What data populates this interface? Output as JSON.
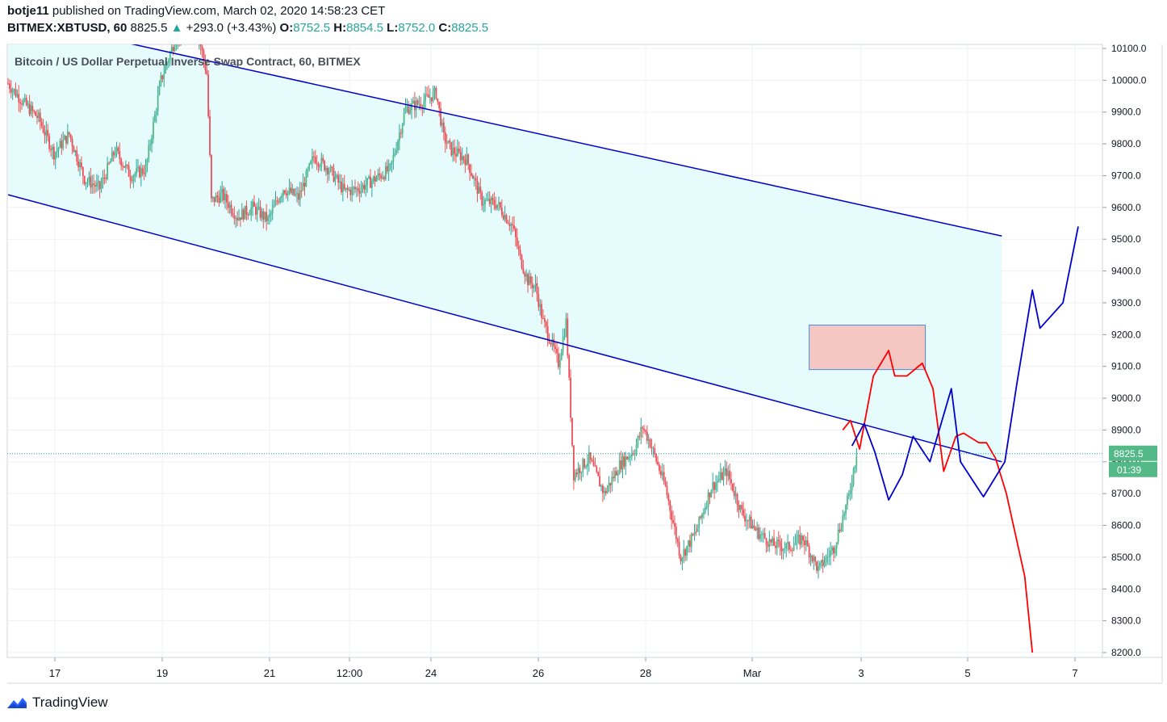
{
  "header": {
    "author": "botje11",
    "published_text": "published on TradingView.com, March 02, 2020 14:58:23 CET",
    "symbol_line": "BITMEX:XBTUSD, 60",
    "last": "8825.5",
    "change_arrow": "▲",
    "change": "+293.0 (+3.43%)",
    "o_label": "O:",
    "o_value": "8752.5",
    "h_label": "H:",
    "h_value": "8854.5",
    "l_label": "L:",
    "l_value": "8752.0",
    "c_label": "C:",
    "c_value": "8825.5"
  },
  "footer": {
    "brand": "TradingView"
  },
  "colors": {
    "up": "#26a69a",
    "up_body": "#53b987",
    "down": "#ef5350",
    "down_body": "#eb4d5c",
    "channel_line": "#0000cc",
    "channel_fill": "#e6fbfc",
    "box_fill": "#f4c7c3",
    "box_border": "#4a8fd9",
    "red_path": "#ff0000",
    "blue_path": "#0000cc",
    "price_tag": "#53b987"
  },
  "chart_data": {
    "type": "candlestick",
    "title": "Bitcoin / US Dollar Perpetual Inverse Swap Contract, 60, BITMEX",
    "y_axis": {
      "ticks": [
        "10100.0",
        "10000.0",
        "9900.0",
        "9800.0",
        "9700.0",
        "9600.0",
        "9500.0",
        "9400.0",
        "9300.0",
        "9200.0",
        "9100.0",
        "9000.0",
        "8900.0",
        "8800.0",
        "8700.0",
        "8600.0",
        "8500.0",
        "8400.0",
        "8300.0",
        "8200.0"
      ],
      "ylim": [
        8180,
        10110
      ]
    },
    "x_axis": {
      "ticks": [
        "17",
        "19",
        "21",
        "12:00",
        "24",
        "26",
        "28",
        "Mar",
        "3",
        "5",
        "7"
      ]
    },
    "last_price": "8825.5",
    "countdown": "01:39",
    "price_path": [
      [
        0,
        9990
      ],
      [
        10,
        9930
      ],
      [
        20,
        9880
      ],
      [
        30,
        9770
      ],
      [
        40,
        9830
      ],
      [
        50,
        9690
      ],
      [
        60,
        9660
      ],
      [
        70,
        9780
      ],
      [
        80,
        9700
      ],
      [
        90,
        9720
      ],
      [
        100,
        10000
      ],
      [
        110,
        10140
      ],
      [
        120,
        10160
      ],
      [
        125,
        10130
      ],
      [
        130,
        10020
      ],
      [
        133,
        9620
      ],
      [
        140,
        9640
      ],
      [
        150,
        9570
      ],
      [
        160,
        9600
      ],
      [
        170,
        9560
      ],
      [
        180,
        9660
      ],
      [
        190,
        9630
      ],
      [
        200,
        9760
      ],
      [
        210,
        9720
      ],
      [
        220,
        9650
      ],
      [
        230,
        9660
      ],
      [
        240,
        9690
      ],
      [
        250,
        9720
      ],
      [
        260,
        9910
      ],
      [
        270,
        9930
      ],
      [
        280,
        9960
      ],
      [
        285,
        9820
      ],
      [
        290,
        9780
      ],
      [
        300,
        9750
      ],
      [
        310,
        9620
      ],
      [
        320,
        9610
      ],
      [
        330,
        9540
      ],
      [
        335,
        9440
      ],
      [
        340,
        9370
      ],
      [
        345,
        9350
      ],
      [
        350,
        9240
      ],
      [
        355,
        9180
      ],
      [
        360,
        9110
      ],
      [
        365,
        9240
      ],
      [
        370,
        8760
      ],
      [
        380,
        8810
      ],
      [
        390,
        8700
      ],
      [
        400,
        8790
      ],
      [
        410,
        8840
      ],
      [
        415,
        8910
      ],
      [
        420,
        8860
      ],
      [
        430,
        8720
      ],
      [
        440,
        8500
      ],
      [
        450,
        8580
      ],
      [
        460,
        8720
      ],
      [
        470,
        8770
      ],
      [
        480,
        8640
      ],
      [
        490,
        8580
      ],
      [
        500,
        8540
      ],
      [
        510,
        8530
      ],
      [
        520,
        8560
      ],
      [
        530,
        8460
      ],
      [
        540,
        8530
      ],
      [
        550,
        8690
      ],
      [
        555,
        8830
      ]
    ],
    "annotations": {
      "channel_upper": [
        [
          0,
          10200
        ],
        [
          650,
          9510
        ]
      ],
      "channel_lower": [
        [
          0,
          9640
        ],
        [
          650,
          8800
        ]
      ],
      "target_box": {
        "x": [
          524,
          600
        ],
        "y": [
          9090,
          9230
        ]
      },
      "red_projection": [
        [
          546,
          8900
        ],
        [
          551,
          8930
        ],
        [
          557,
          8840
        ],
        [
          566,
          9070
        ],
        [
          576,
          9150
        ],
        [
          580,
          9070
        ],
        [
          588,
          9070
        ],
        [
          598,
          9110
        ],
        [
          605,
          9030
        ],
        [
          612,
          8770
        ],
        [
          620,
          8880
        ],
        [
          625,
          8890
        ],
        [
          635,
          8860
        ],
        [
          640,
          8860
        ],
        [
          646,
          8810
        ],
        [
          653,
          8700
        ],
        [
          665,
          8440
        ],
        [
          670,
          8200
        ]
      ],
      "blue_projection": [
        [
          552,
          8850
        ],
        [
          560,
          8920
        ],
        [
          567,
          8830
        ],
        [
          576,
          8680
        ],
        [
          585,
          8760
        ],
        [
          592,
          8880
        ],
        [
          603,
          8800
        ],
        [
          617,
          9030
        ],
        [
          623,
          8800
        ],
        [
          638,
          8690
        ],
        [
          652,
          8800
        ],
        [
          660,
          9050
        ],
        [
          670,
          9340
        ],
        [
          675,
          9220
        ],
        [
          690,
          9300
        ],
        [
          700,
          9540
        ]
      ]
    },
    "grid": true
  }
}
